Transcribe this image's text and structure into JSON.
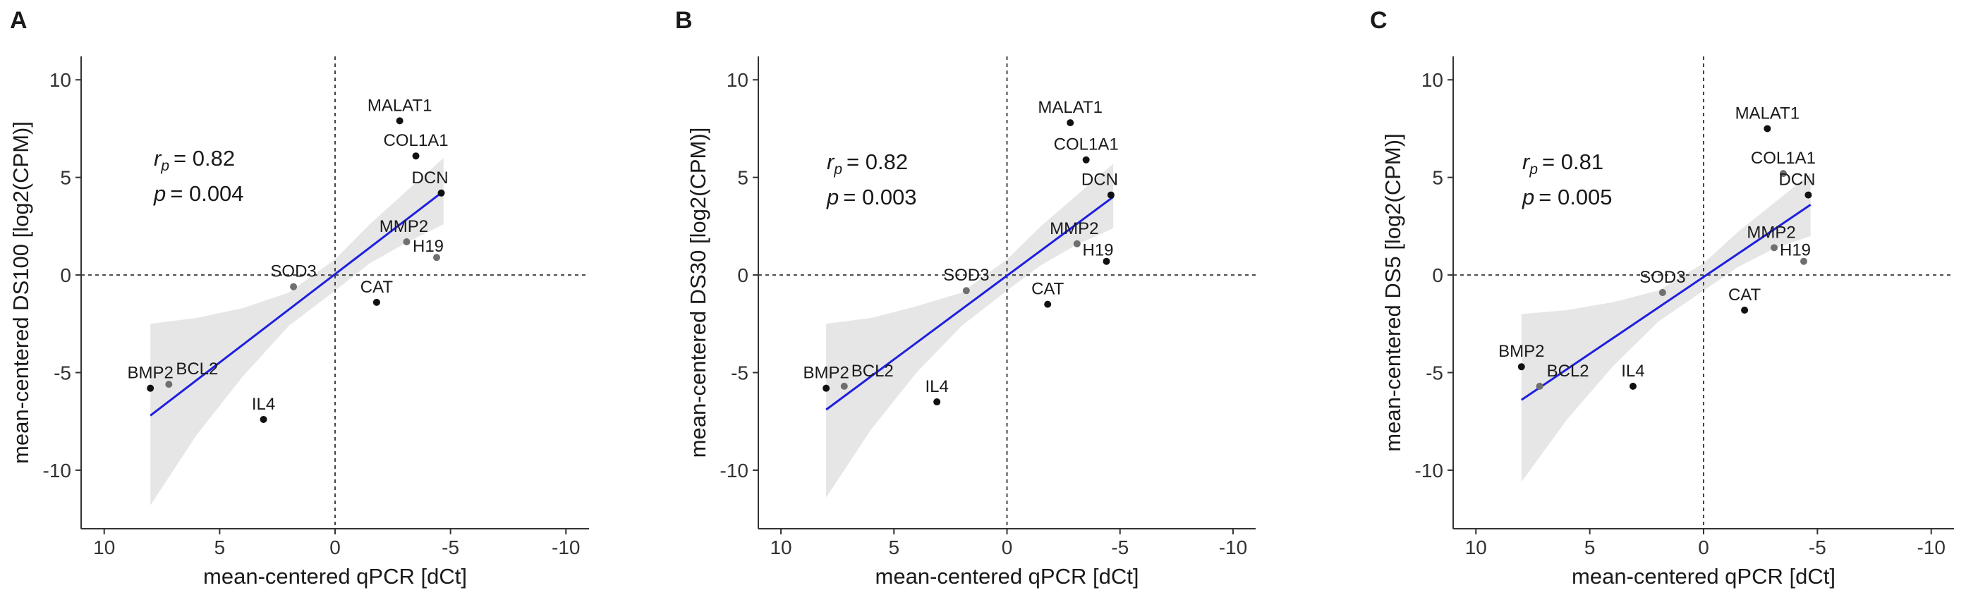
{
  "colors": {
    "fit_line": "#1f1fe0",
    "ribbon": "#e6e6e6",
    "point_dark": "#111111",
    "point_grey": "#6f6f6f",
    "axis": "#333333"
  },
  "chart_data": [
    {
      "type": "scatter",
      "panel": "A",
      "xlabel": "mean-centered qPCR [dCt]",
      "ylabel": "mean-centered DS100 [log2(CPM)]",
      "xlim": [
        11,
        -11
      ],
      "ylim": [
        -13,
        11.2
      ],
      "xticks": [
        10,
        5,
        0,
        -5,
        -10
      ],
      "yticks": [
        10,
        5,
        0,
        -5,
        -10
      ],
      "reference_lines": {
        "x": 0,
        "y": 0
      },
      "stats": {
        "r_symbol": "r",
        "r_subscript": "p",
        "r_value": "= 0.82",
        "p_symbol": "p",
        "p_value": "= 0.004"
      },
      "points": [
        {
          "label": "MALAT1",
          "x": -2.8,
          "y": 7.9,
          "shade": "dark"
        },
        {
          "label": "COL1A1",
          "x": -3.5,
          "y": 6.1,
          "shade": "dark"
        },
        {
          "label": "DCN",
          "x": -4.6,
          "y": 4.2,
          "shade": "dark"
        },
        {
          "label": "MMP2",
          "x": -3.1,
          "y": 1.7,
          "shade": "grey"
        },
        {
          "label": "H19",
          "x": -4.4,
          "y": 0.9,
          "shade": "grey"
        },
        {
          "label": "SOD3",
          "x": 1.8,
          "y": -0.6,
          "shade": "grey"
        },
        {
          "label": "CAT",
          "x": -1.8,
          "y": -1.4,
          "shade": "dark"
        },
        {
          "label": "BMP2",
          "x": 8.0,
          "y": -5.8,
          "shade": "dark"
        },
        {
          "label": "BCL2",
          "x": 7.2,
          "y": -5.6,
          "shade": "grey"
        },
        {
          "label": "IL4",
          "x": 3.1,
          "y": -7.4,
          "shade": "dark"
        }
      ],
      "fit": {
        "x0": 8.0,
        "y0": -7.2,
        "x1": -4.7,
        "y1": 4.3
      },
      "band_lower": [
        [
          8.0,
          -11.8
        ],
        [
          6,
          -8.2
        ],
        [
          4,
          -5.2
        ],
        [
          2,
          -2.6
        ],
        [
          0,
          -0.8
        ],
        [
          -1.5,
          0.6
        ],
        [
          -3,
          1.6
        ],
        [
          -4.7,
          2.6
        ]
      ],
      "band_upper": [
        [
          8.0,
          -2.5
        ],
        [
          6,
          -2.2
        ],
        [
          4,
          -1.7
        ],
        [
          2,
          -0.9
        ],
        [
          0,
          0.8
        ],
        [
          -1.5,
          2.6
        ],
        [
          -3,
          4.2
        ],
        [
          -4.7,
          6.0
        ]
      ]
    },
    {
      "type": "scatter",
      "panel": "B",
      "xlabel": "mean-centered qPCR [dCt]",
      "ylabel": "mean-centered DS30 [log2(CPM)]",
      "xlim": [
        11,
        -11
      ],
      "ylim": [
        -13,
        11.2
      ],
      "xticks": [
        10,
        5,
        0,
        -5,
        -10
      ],
      "yticks": [
        10,
        5,
        0,
        -5,
        -10
      ],
      "reference_lines": {
        "x": 0,
        "y": 0
      },
      "stats": {
        "r_symbol": "r",
        "r_subscript": "p",
        "r_value": "= 0.82",
        "p_symbol": "p",
        "p_value": "= 0.003"
      },
      "points": [
        {
          "label": "MALAT1",
          "x": -2.8,
          "y": 7.8,
          "shade": "dark"
        },
        {
          "label": "COL1A1",
          "x": -3.5,
          "y": 5.9,
          "shade": "dark"
        },
        {
          "label": "DCN",
          "x": -4.6,
          "y": 4.1,
          "shade": "dark"
        },
        {
          "label": "MMP2",
          "x": -3.1,
          "y": 1.6,
          "shade": "grey"
        },
        {
          "label": "H19",
          "x": -4.4,
          "y": 0.7,
          "shade": "dark"
        },
        {
          "label": "SOD3",
          "x": 1.8,
          "y": -0.8,
          "shade": "grey"
        },
        {
          "label": "CAT",
          "x": -1.8,
          "y": -1.5,
          "shade": "dark"
        },
        {
          "label": "BMP2",
          "x": 8.0,
          "y": -5.8,
          "shade": "dark"
        },
        {
          "label": "BCL2",
          "x": 7.2,
          "y": -5.7,
          "shade": "grey"
        },
        {
          "label": "IL4",
          "x": 3.1,
          "y": -6.5,
          "shade": "dark"
        }
      ],
      "fit": {
        "x0": 8.0,
        "y0": -6.9,
        "x1": -4.7,
        "y1": 4.0
      },
      "band_lower": [
        [
          8.0,
          -11.4
        ],
        [
          6,
          -7.9
        ],
        [
          4,
          -5.0
        ],
        [
          2,
          -2.6
        ],
        [
          0,
          -0.8
        ],
        [
          -1.5,
          0.5
        ],
        [
          -3,
          1.5
        ],
        [
          -4.7,
          2.4
        ]
      ],
      "band_upper": [
        [
          8.0,
          -2.5
        ],
        [
          6,
          -2.2
        ],
        [
          4,
          -1.6
        ],
        [
          2,
          -0.9
        ],
        [
          0,
          0.8
        ],
        [
          -1.5,
          2.5
        ],
        [
          -3,
          4.0
        ],
        [
          -4.7,
          5.7
        ]
      ]
    },
    {
      "type": "scatter",
      "panel": "C",
      "xlabel": "mean-centered qPCR [dCt]",
      "ylabel": "mean-centered DS5 [log2(CPM)]",
      "xlim": [
        11,
        -11
      ],
      "ylim": [
        -13,
        11.2
      ],
      "xticks": [
        10,
        5,
        0,
        -5,
        -10
      ],
      "yticks": [
        10,
        5,
        0,
        -5,
        -10
      ],
      "reference_lines": {
        "x": 0,
        "y": 0
      },
      "stats": {
        "r_symbol": "r",
        "r_subscript": "p",
        "r_value": "= 0.81",
        "p_symbol": "p",
        "p_value": "= 0.005"
      },
      "points": [
        {
          "label": "MALAT1",
          "x": -2.8,
          "y": 7.5,
          "shade": "dark"
        },
        {
          "label": "COL1A1",
          "x": -3.5,
          "y": 5.2,
          "shade": "grey"
        },
        {
          "label": "DCN",
          "x": -4.6,
          "y": 4.1,
          "shade": "dark"
        },
        {
          "label": "MMP2",
          "x": -3.1,
          "y": 1.4,
          "shade": "grey"
        },
        {
          "label": "H19",
          "x": -4.4,
          "y": 0.7,
          "shade": "grey"
        },
        {
          "label": "SOD3",
          "x": 1.8,
          "y": -0.9,
          "shade": "grey"
        },
        {
          "label": "CAT",
          "x": -1.8,
          "y": -1.8,
          "shade": "dark"
        },
        {
          "label": "BMP2",
          "x": 8.0,
          "y": -4.7,
          "shade": "dark"
        },
        {
          "label": "BCL2",
          "x": 7.2,
          "y": -5.7,
          "shade": "grey"
        },
        {
          "label": "IL4",
          "x": 3.1,
          "y": -5.7,
          "shade": "dark"
        }
      ],
      "fit": {
        "x0": 8.0,
        "y0": -6.4,
        "x1": -4.7,
        "y1": 3.6
      },
      "band_lower": [
        [
          8.0,
          -10.6
        ],
        [
          6,
          -7.4
        ],
        [
          4,
          -4.7
        ],
        [
          2,
          -2.4
        ],
        [
          0,
          -0.8
        ],
        [
          -1.5,
          0.4
        ],
        [
          -3,
          1.3
        ],
        [
          -4.7,
          2.0
        ]
      ],
      "band_upper": [
        [
          8.0,
          -2.0
        ],
        [
          6,
          -1.8
        ],
        [
          4,
          -1.4
        ],
        [
          2,
          -0.8
        ],
        [
          0,
          0.6
        ],
        [
          -1.5,
          2.2
        ],
        [
          -3,
          3.6
        ],
        [
          -4.7,
          5.2
        ]
      ]
    }
  ]
}
